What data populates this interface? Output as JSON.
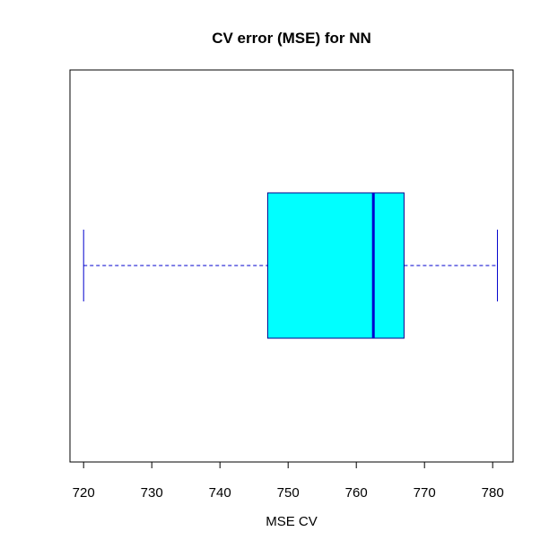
{
  "chart_data": {
    "type": "boxplot",
    "orientation": "horizontal",
    "title": "CV error (MSE) for NN",
    "xlabel": "MSE CV",
    "ylabel": "",
    "xlim": [
      718,
      783
    ],
    "xticks": [
      720,
      730,
      740,
      750,
      760,
      770,
      780
    ],
    "xtick_labels": [
      "720",
      "730",
      "740",
      "750",
      "760",
      "770",
      "780"
    ],
    "grid": false,
    "legend": "none",
    "box": {
      "whisker_low": 720,
      "q1": 747,
      "median": 762.5,
      "q3": 767,
      "whisker_high": 780.7
    },
    "colors": {
      "box_fill": "#00FFFF",
      "box_border": "#00008B",
      "median": "#0000CD",
      "whisker": "#0000CD",
      "axis": "#000000"
    }
  }
}
